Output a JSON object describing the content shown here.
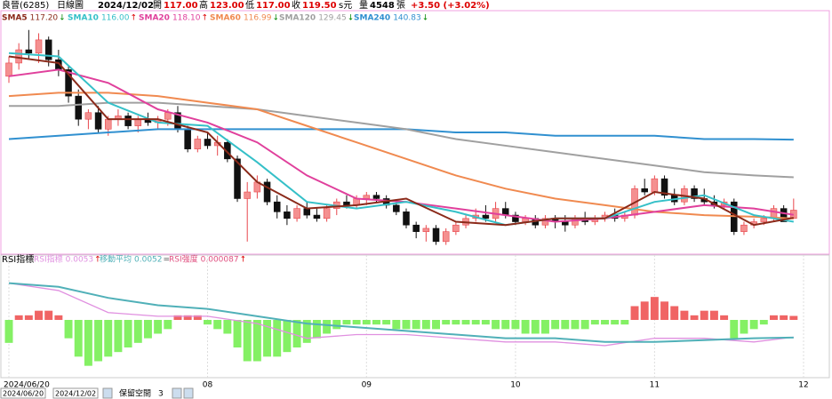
{
  "chart_data": {
    "type": "candlestick",
    "header": {
      "stock": "良晉(6285)",
      "period": "日線圖",
      "date": "2024/12/02",
      "open_label": "開",
      "open": "117.00",
      "high_label": "高",
      "high": "123.00",
      "low_label": "低",
      "low": "117.00",
      "close_label": "收",
      "close": "119.50",
      "unit": "s元",
      "volume_label": "量",
      "volume": "4548",
      "volume_unit": "張",
      "change": "+3.50 (+3.02%)"
    },
    "xlim": [
      0,
      80
    ],
    "xticks": [
      {
        "value": 0,
        "label": "2024/06/20"
      },
      {
        "value": 20,
        "label": "08"
      },
      {
        "value": 36,
        "label": "09"
      },
      {
        "value": 51,
        "label": "10"
      },
      {
        "value": 65,
        "label": "11"
      },
      {
        "value": 80,
        "label": "12"
      }
    ],
    "ylim": [
      107,
      175
    ],
    "up_color": "#e8474c",
    "down_color": "#111111",
    "candles": [
      [
        160,
        166,
        158,
        164
      ],
      [
        164,
        170,
        162,
        168
      ],
      [
        168,
        174,
        165,
        167
      ],
      [
        167,
        173,
        164,
        171
      ],
      [
        171,
        172,
        163,
        165
      ],
      [
        165,
        168,
        160,
        162
      ],
      [
        162,
        163,
        152,
        154
      ],
      [
        154,
        156,
        145,
        147
      ],
      [
        147,
        150,
        144,
        149
      ],
      [
        149,
        151,
        143,
        144
      ],
      [
        144,
        148,
        142,
        147
      ],
      [
        147,
        150,
        145,
        148
      ],
      [
        148,
        149,
        144,
        145
      ],
      [
        145,
        148,
        143,
        147
      ],
      [
        147,
        149,
        145,
        146
      ],
      [
        146,
        148,
        144,
        147
      ],
      [
        147,
        150,
        145,
        149
      ],
      [
        149,
        151,
        143,
        144
      ],
      [
        144,
        145,
        137,
        138
      ],
      [
        138,
        142,
        137,
        141
      ],
      [
        141,
        143,
        138,
        139
      ],
      [
        139,
        142,
        136,
        140
      ],
      [
        140,
        141,
        134,
        135
      ],
      [
        135,
        136,
        122,
        123
      ],
      [
        123,
        128,
        110,
        125
      ],
      [
        125,
        130,
        123,
        128
      ],
      [
        128,
        129,
        121,
        122
      ],
      [
        122,
        124,
        117,
        119
      ],
      [
        119,
        121,
        115,
        117
      ],
      [
        117,
        121,
        116,
        120
      ],
      [
        120,
        122,
        117,
        118
      ],
      [
        118,
        120,
        116,
        117
      ],
      [
        117,
        121,
        116,
        120
      ],
      [
        120,
        123,
        118,
        122
      ],
      [
        122,
        124,
        120,
        121
      ],
      [
        121,
        124,
        120,
        123
      ],
      [
        123,
        125,
        121,
        124
      ],
      [
        124,
        125,
        122,
        123
      ],
      [
        123,
        124,
        120,
        121
      ],
      [
        121,
        122,
        118,
        119
      ],
      [
        119,
        120,
        114,
        115
      ],
      [
        115,
        116,
        111,
        113
      ],
      [
        113,
        115,
        110,
        114
      ],
      [
        114,
        115,
        109,
        110
      ],
      [
        110,
        114,
        109,
        113
      ],
      [
        113,
        116,
        112,
        115
      ],
      [
        115,
        118,
        114,
        117
      ],
      [
        117,
        120,
        116,
        118
      ],
      [
        118,
        121,
        116,
        117
      ],
      [
        117,
        122,
        116,
        120
      ],
      [
        120,
        122,
        117,
        118
      ],
      [
        118,
        119,
        115,
        116
      ],
      [
        116,
        118,
        115,
        117
      ],
      [
        117,
        118,
        114,
        115
      ],
      [
        115,
        118,
        114,
        117
      ],
      [
        117,
        118,
        114,
        116
      ],
      [
        116,
        118,
        113,
        115
      ],
      [
        115,
        118,
        114,
        117
      ],
      [
        117,
        119,
        115,
        116
      ],
      [
        116,
        118,
        115,
        117
      ],
      [
        117,
        119,
        116,
        118
      ],
      [
        118,
        120,
        116,
        117
      ],
      [
        117,
        119,
        116,
        118
      ],
      [
        118,
        127,
        117,
        126
      ],
      [
        126,
        129,
        124,
        125
      ],
      [
        125,
        130,
        124,
        129
      ],
      [
        129,
        130,
        123,
        124
      ],
      [
        124,
        126,
        121,
        122
      ],
      [
        122,
        127,
        121,
        126
      ],
      [
        126,
        127,
        122,
        123
      ],
      [
        123,
        126,
        121,
        122
      ],
      [
        122,
        124,
        120,
        121
      ],
      [
        121,
        123,
        120,
        122
      ],
      [
        122,
        123,
        112,
        113
      ],
      [
        113,
        116,
        112,
        115
      ],
      [
        115,
        117,
        114,
        116
      ],
      [
        116,
        118,
        115,
        117
      ],
      [
        117,
        121,
        116,
        120
      ],
      [
        120,
        121,
        116,
        116
      ],
      [
        117,
        123,
        117,
        119.5
      ]
    ],
    "x": [
      0,
      5,
      10,
      15,
      20,
      25,
      30,
      35,
      40,
      45,
      50,
      55,
      60,
      65,
      70,
      75,
      79
    ],
    "series": [
      {
        "name": "SMA5",
        "label": "117.20",
        "trend": "↓",
        "color": "#8b2a1a",
        "values": [
          166,
          164,
          147,
          147,
          143,
          128,
          120,
          121,
          123,
          116,
          115,
          117,
          117,
          125,
          123,
          115,
          117.2
        ]
      },
      {
        "name": "SMA10",
        "label": "116.00",
        "trend": "↑",
        "color": "#35c0c8",
        "values": [
          167,
          166,
          152,
          146,
          145,
          134,
          122,
          120,
          122,
          119,
          115,
          117,
          117,
          122,
          124,
          118,
          116.0
        ]
      },
      {
        "name": "SMA20",
        "label": "118.10",
        "trend": "↑",
        "color": "#e0409c",
        "values": [
          160,
          162,
          158,
          150,
          146,
          140,
          130,
          123,
          122,
          120,
          118,
          116,
          117,
          119,
          121,
          120,
          118.1
        ]
      },
      {
        "name": "SMA60",
        "label": "116.99",
        "trend": "↓",
        "color": "#f08a50",
        "values": [
          154,
          155,
          155,
          154,
          152,
          150,
          145,
          140,
          135,
          130,
          126,
          123,
          121,
          119,
          118,
          117.5,
          116.99
        ]
      },
      {
        "name": "SMA120",
        "label": "129.45",
        "trend": "↓",
        "color": "#a0a0a0",
        "values": [
          151,
          151,
          152,
          152,
          151,
          150,
          148,
          146,
          144,
          141,
          139,
          137,
          135,
          133,
          131,
          130,
          129.45
        ]
      },
      {
        "name": "SMA240",
        "label": "140.83",
        "trend": "↓",
        "color": "#3090d0",
        "values": [
          141,
          142,
          143,
          144,
          144,
          144,
          144,
          144,
          144,
          143,
          143,
          142,
          142,
          142,
          141,
          141,
          140.83
        ]
      }
    ],
    "indicator": {
      "title": "RSI指標",
      "ylim": [
        -0.005,
        0.025
      ],
      "y2lim": [
        -0.0012,
        0.0012
      ],
      "series": [
        {
          "name": "RSI指標",
          "label": "0.0053",
          "trend": "↑",
          "color": "#e090e0",
          "values": [
            0.02,
            0.018,
            0.012,
            0.011,
            0.011,
            0.009,
            0.005,
            0.006,
            0.006,
            0.005,
            0.004,
            0.004,
            0.003,
            0.005,
            0.005,
            0.004,
            0.0053
          ]
        },
        {
          "name": "移動平均",
          "label": "0.0052",
          "trend": "=",
          "color": "#50b0b8",
          "values": [
            0.02,
            0.019,
            0.016,
            0.014,
            0.013,
            0.011,
            0.009,
            0.008,
            0.007,
            0.006,
            0.005,
            0.005,
            0.004,
            0.004,
            0.0045,
            0.005,
            0.0052
          ]
        }
      ],
      "bars": {
        "name": "RSI強度",
        "label": "0.000087",
        "trend": "↑",
        "up_color": "#f06464",
        "down_color": "#84f064",
        "values": [
          -0.0005,
          0.0001,
          0.0001,
          0.0002,
          0.0002,
          0.0001,
          -0.0004,
          -0.0008,
          -0.001,
          -0.0009,
          -0.0008,
          -0.0007,
          -0.0006,
          -0.0005,
          -0.0004,
          -0.0003,
          -0.0002,
          0.0001,
          0.0001,
          0.0001,
          -0.0001,
          -0.0002,
          -0.0003,
          -0.0006,
          -0.0009,
          -0.0009,
          -0.0008,
          -0.0008,
          -0.0007,
          -0.0006,
          -0.0005,
          -0.0004,
          -0.0003,
          -0.0002,
          -0.0001,
          -0.0001,
          -0.0001,
          -0.0001,
          -0.0001,
          -0.0002,
          -0.0002,
          -0.0002,
          -0.0002,
          -0.0002,
          -0.0001,
          -0.0001,
          -0.0001,
          -0.0001,
          -0.0001,
          -0.0002,
          -0.0002,
          -0.0002,
          -0.0003,
          -0.0003,
          -0.0003,
          -0.0002,
          -0.0002,
          -0.0002,
          -0.0002,
          -0.0001,
          -0.0001,
          -0.0001,
          -0.0001,
          0.0003,
          0.0004,
          0.0005,
          0.0004,
          0.0003,
          0.0002,
          0.0001,
          0.0002,
          0.0002,
          0.0001,
          -0.0004,
          -0.0003,
          -0.0002,
          -0.0001,
          0.0001,
          0.0001,
          8.7e-05
        ]
      }
    },
    "toolbar": {
      "start": "2024/06/20",
      "end": "2024/12/02",
      "label": "保留空間",
      "value": "3"
    }
  }
}
